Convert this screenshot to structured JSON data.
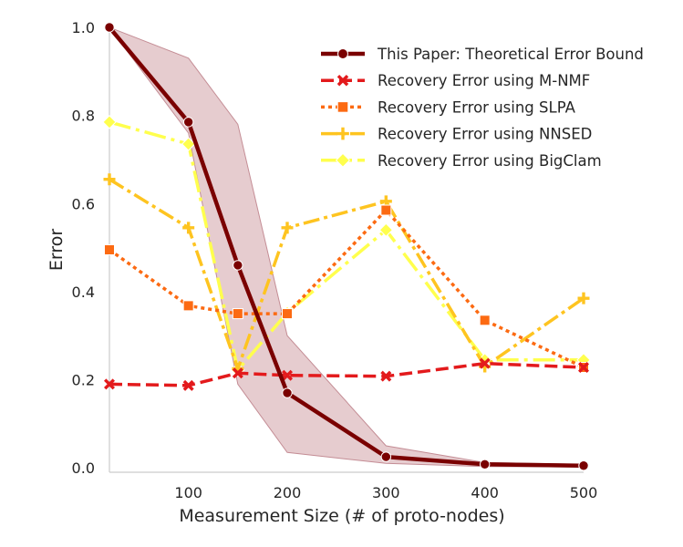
{
  "chart_data": {
    "type": "line",
    "title": "",
    "xlabel": "Measurement Size (# of proto-nodes)",
    "ylabel": "Error",
    "xlim": [
      20,
      500
    ],
    "ylim": [
      -0.01,
      1.0
    ],
    "xticks": [
      100,
      200,
      300,
      400,
      500
    ],
    "yticks": [
      0.0,
      0.2,
      0.4,
      0.6,
      0.8,
      1.0
    ],
    "xtick_labels": [
      "100",
      "200",
      "300",
      "400",
      "500"
    ],
    "ytick_labels": [
      "0.0",
      "0.2",
      "0.4",
      "0.6",
      "0.8",
      "1.0"
    ],
    "grid": false,
    "legend_position": "top-right",
    "x": [
      20,
      100,
      150,
      200,
      300,
      400,
      500
    ],
    "band": {
      "series": "This Paper: Theoretical Error Bound",
      "lower": [
        1.0,
        0.76,
        0.19,
        0.035,
        0.01,
        0.003,
        0.002
      ],
      "upper": [
        1.0,
        0.93,
        0.78,
        0.3,
        0.05,
        0.012,
        0.008
      ],
      "color": "#dcb6bb"
    },
    "series": [
      {
        "name": "This Paper: Theoretical Error Bound",
        "values": [
          1.0,
          0.785,
          0.46,
          0.17,
          0.025,
          0.008,
          0.005
        ],
        "color": "#7a0000",
        "dash": "",
        "width": 4.5,
        "marker": "circle"
      },
      {
        "name": "Recovery Error using M-NMF",
        "values": [
          0.19,
          0.187,
          0.215,
          0.21,
          0.208,
          0.237,
          0.228
        ],
        "color": "#e31a1c",
        "dash": "14,6",
        "width": 3.5,
        "marker": "x"
      },
      {
        "name": "Recovery Error using SLPA",
        "values": [
          0.495,
          0.368,
          0.35,
          0.35,
          0.585,
          0.335,
          0.228
        ],
        "color": "#fc6a12",
        "dash": "4,4",
        "width": 3.5,
        "marker": "square"
      },
      {
        "name": "Recovery Error using NNSED",
        "values": [
          0.655,
          0.545,
          0.225,
          0.545,
          0.605,
          0.23,
          0.385
        ],
        "color": "#fec420",
        "dash": "18,5,4,5",
        "width": 3.5,
        "marker": "plus"
      },
      {
        "name": "Recovery Error using BigClam",
        "values": [
          0.785,
          0.735,
          0.222,
          0.352,
          0.54,
          0.245,
          0.245
        ],
        "color": "#ffff4d",
        "dash": "24,6,4,6",
        "width": 3.5,
        "marker": "diamond"
      }
    ]
  }
}
